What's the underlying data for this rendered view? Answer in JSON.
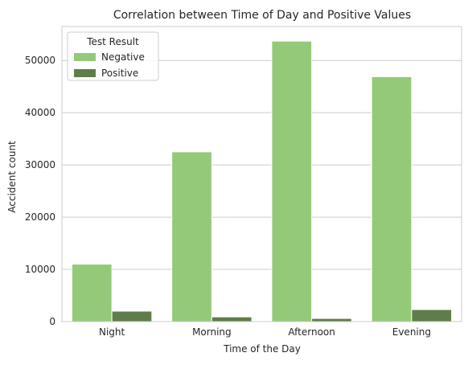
{
  "chart_data": {
    "type": "bar",
    "title": "Correlation between Time of Day and Positive Values",
    "xlabel": "Time of the Day",
    "ylabel": "Accident count",
    "categories": [
      "Night",
      "Morning",
      "Afternoon",
      "Evening"
    ],
    "series": [
      {
        "name": "Negative",
        "values": [
          11000,
          32500,
          53700,
          46900
        ],
        "color": "#94c978"
      },
      {
        "name": "Positive",
        "values": [
          2000,
          900,
          600,
          2300
        ],
        "color": "#5f7d4a"
      }
    ],
    "ylim": [
      0,
      56500
    ],
    "yticks": [
      0,
      10000,
      20000,
      30000,
      40000,
      50000
    ],
    "ytick_labels": [
      "0",
      "10000",
      "20000",
      "30000",
      "40000",
      "50000"
    ],
    "grid": "horizontal",
    "legend": {
      "title": "Test Result",
      "placement": "top-left"
    },
    "colors": {
      "grid": "#cccccc",
      "axes_edge": "#cccccc",
      "text": "#262626"
    }
  }
}
